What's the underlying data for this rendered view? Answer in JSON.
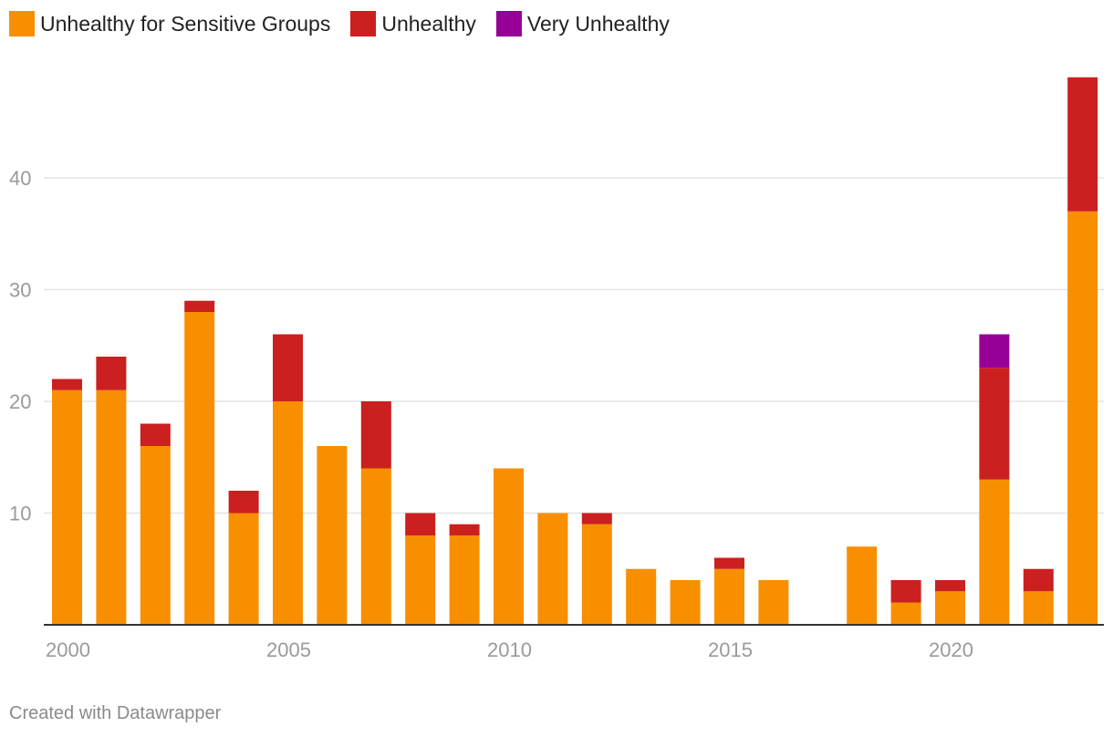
{
  "legend": {
    "items": [
      {
        "label": "Unhealthy for Sensitive Groups",
        "color": "#f78f00"
      },
      {
        "label": "Unhealthy",
        "color": "#cc1f1f"
      },
      {
        "label": "Very Unhealthy",
        "color": "#960096"
      }
    ]
  },
  "chart_data": {
    "type": "bar",
    "stacked": true,
    "categories": [
      2000,
      2001,
      2002,
      2003,
      2004,
      2005,
      2006,
      2007,
      2008,
      2009,
      2010,
      2011,
      2012,
      2013,
      2014,
      2015,
      2016,
      2017,
      2018,
      2019,
      2020,
      2021,
      2022,
      2023
    ],
    "series": [
      {
        "name": "Unhealthy for Sensitive Groups",
        "color": "#f78f00",
        "values": [
          21,
          21,
          16,
          28,
          10,
          20,
          16,
          14,
          8,
          8,
          14,
          10,
          9,
          5,
          4,
          5,
          4,
          0,
          7,
          2,
          3,
          13,
          3,
          37
        ]
      },
      {
        "name": "Unhealthy",
        "color": "#cc1f1f",
        "values": [
          1,
          3,
          2,
          1,
          2,
          6,
          0,
          6,
          2,
          1,
          0,
          0,
          1,
          0,
          0,
          1,
          0,
          0,
          0,
          2,
          1,
          10,
          2,
          12
        ]
      },
      {
        "name": "Very Unhealthy",
        "color": "#960096",
        "values": [
          0,
          0,
          0,
          0,
          0,
          0,
          0,
          0,
          0,
          0,
          0,
          0,
          0,
          0,
          0,
          0,
          0,
          0,
          0,
          0,
          0,
          3,
          0,
          0
        ]
      }
    ],
    "yticks": [
      10,
      20,
      30,
      40
    ],
    "xticks": [
      2000,
      2005,
      2010,
      2015,
      2020
    ],
    "ylim": [
      0,
      49
    ],
    "grid": true,
    "legend_position": "top-left"
  },
  "footer": {
    "credit": "Created with Datawrapper"
  }
}
